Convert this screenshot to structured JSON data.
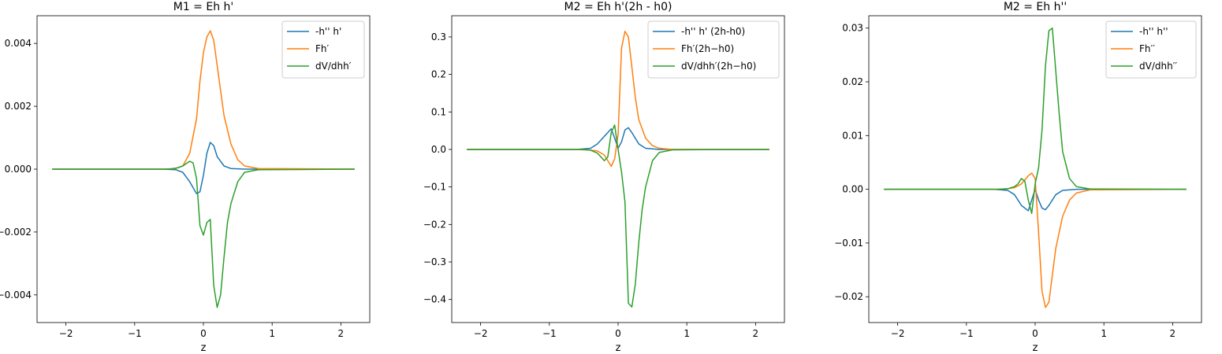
{
  "chart_data": [
    {
      "type": "line",
      "title": "M1 = Eh h'",
      "xlabel": "z",
      "ylabel": "",
      "xlim": [
        -2.42,
        2.42
      ],
      "ylim": [
        -0.00488,
        0.00488
      ],
      "xticks": [
        -2,
        -1,
        0,
        1,
        2
      ],
      "xtick_labels": [
        "−2",
        "−1",
        "0",
        "1",
        "2"
      ],
      "yticks": [
        -0.004,
        -0.002,
        0.0,
        0.002,
        0.004
      ],
      "ytick_labels": [
        "−0.004",
        "−0.002",
        "0.000",
        "0.002",
        "0.004"
      ],
      "legend_position": "top-right",
      "series": [
        {
          "name": "-h'' h'",
          "color": "#1f77b4",
          "x": [
            -2.2,
            -0.6,
            -0.4,
            -0.3,
            -0.2,
            -0.1,
            -0.05,
            0.0,
            0.05,
            0.1,
            0.15,
            0.2,
            0.3,
            0.4,
            0.6,
            2.2
          ],
          "y": [
            0,
            0,
            -2e-05,
            -0.0001,
            -0.0004,
            -0.00078,
            -0.00072,
            -0.0002,
            0.0005,
            0.00085,
            0.00075,
            0.0004,
            0.0001,
            2e-05,
            0,
            0
          ]
        },
        {
          "name": "Fh′",
          "color": "#ff7f0e",
          "x": [
            -2.2,
            -0.6,
            -0.4,
            -0.3,
            -0.2,
            -0.1,
            -0.05,
            0.0,
            0.05,
            0.1,
            0.15,
            0.2,
            0.25,
            0.3,
            0.4,
            0.5,
            0.6,
            0.8,
            2.2
          ],
          "y": [
            0,
            0,
            2e-05,
            0.0001,
            0.0005,
            0.0016,
            0.0028,
            0.0037,
            0.0042,
            0.0044,
            0.0041,
            0.0033,
            0.0025,
            0.0017,
            0.0008,
            0.0003,
            0.0001,
            2e-05,
            0
          ]
        },
        {
          "name": "dV/dhh′",
          "color": "#2ca02c",
          "x": [
            -2.2,
            -0.5,
            -0.4,
            -0.3,
            -0.2,
            -0.15,
            -0.1,
            -0.05,
            0.0,
            0.05,
            0.1,
            0.15,
            0.2,
            0.25,
            0.3,
            0.35,
            0.4,
            0.5,
            0.6,
            0.8,
            2.2
          ],
          "y": [
            0,
            0,
            3e-05,
            0.0001,
            0.00025,
            0.0002,
            -0.0003,
            -0.0018,
            -0.0021,
            -0.0017,
            -0.0016,
            -0.0037,
            -0.0044,
            -0.004,
            -0.0028,
            -0.0017,
            -0.0011,
            -0.0004,
            -0.0001,
            -2e-05,
            0
          ]
        }
      ]
    },
    {
      "type": "line",
      "title": "M2 = Eh h'(2h - h0)",
      "xlabel": "z",
      "ylabel": "",
      "xlim": [
        -2.42,
        2.42
      ],
      "ylim": [
        -0.4615,
        0.3565
      ],
      "xticks": [
        -2,
        -1,
        0,
        1,
        2
      ],
      "xtick_labels": [
        "−2",
        "−1",
        "0",
        "1",
        "2"
      ],
      "yticks": [
        -0.4,
        -0.3,
        -0.2,
        -0.1,
        0.0,
        0.1,
        0.2,
        0.3
      ],
      "ytick_labels": [
        "−0.4",
        "−0.3",
        "−0.2",
        "−0.1",
        "0.0",
        "0.1",
        "0.2",
        "0.3"
      ],
      "legend_position": "top-right",
      "series": [
        {
          "name": "-h'' h' (2h-h0)",
          "color": "#1f77b4",
          "x": [
            -2.2,
            -0.6,
            -0.4,
            -0.3,
            -0.2,
            -0.1,
            -0.05,
            0.0,
            0.05,
            0.1,
            0.15,
            0.2,
            0.3,
            0.4,
            0.6,
            2.2
          ],
          "y": [
            0,
            0,
            0.003,
            0.015,
            0.035,
            0.055,
            0.03,
            0.003,
            0.02,
            0.052,
            0.058,
            0.045,
            0.015,
            0.003,
            0,
            0
          ]
        },
        {
          "name": "Fh′(2h−h0)",
          "color": "#ff7f0e",
          "x": [
            -2.2,
            -0.6,
            -0.4,
            -0.3,
            -0.2,
            -0.15,
            -0.1,
            -0.05,
            0.0,
            0.05,
            0.1,
            0.15,
            0.2,
            0.25,
            0.3,
            0.4,
            0.5,
            0.6,
            0.8,
            2.2
          ],
          "y": [
            0,
            0,
            -0.002,
            -0.004,
            -0.015,
            -0.03,
            -0.045,
            -0.025,
            0.04,
            0.27,
            0.315,
            0.3,
            0.22,
            0.14,
            0.08,
            0.03,
            0.01,
            0.003,
            0,
            0
          ]
        },
        {
          "name": "dV/dhh′(2h−h0)",
          "color": "#2ca02c",
          "x": [
            -2.2,
            -0.5,
            -0.4,
            -0.3,
            -0.2,
            -0.15,
            -0.1,
            -0.05,
            0.0,
            0.05,
            0.1,
            0.15,
            0.2,
            0.25,
            0.3,
            0.35,
            0.4,
            0.5,
            0.6,
            0.8,
            2.2
          ],
          "y": [
            0,
            0,
            -0.002,
            -0.01,
            -0.03,
            -0.02,
            0.045,
            0.065,
            0.0,
            -0.06,
            -0.14,
            -0.41,
            -0.42,
            -0.36,
            -0.25,
            -0.16,
            -0.1,
            -0.03,
            -0.008,
            -0.001,
            0
          ]
        }
      ]
    },
    {
      "type": "line",
      "title": "M2 = Eh h''",
      "xlabel": "z",
      "ylabel": "",
      "xlim": [
        -2.42,
        2.42
      ],
      "ylim": [
        -0.0248,
        0.0323
      ],
      "xticks": [
        -2,
        -1,
        0,
        1,
        2
      ],
      "xtick_labels": [
        "−2",
        "−1",
        "0",
        "1",
        "2"
      ],
      "yticks": [
        -0.02,
        -0.01,
        0.0,
        0.01,
        0.02,
        0.03
      ],
      "ytick_labels": [
        "−0.02",
        "−0.01",
        "0.00",
        "0.01",
        "0.02",
        "0.03"
      ],
      "legend_position": "top-right",
      "series": [
        {
          "name": "-h'' h''",
          "color": "#1f77b4",
          "x": [
            -2.2,
            -0.6,
            -0.4,
            -0.3,
            -0.2,
            -0.1,
            -0.05,
            0.0,
            0.05,
            0.1,
            0.15,
            0.2,
            0.3,
            0.4,
            0.6,
            2.2
          ],
          "y": [
            0,
            0,
            -0.0002,
            -0.001,
            -0.003,
            -0.004,
            -0.002,
            0.0,
            -0.002,
            -0.0035,
            -0.0038,
            -0.003,
            -0.001,
            -0.0002,
            0,
            0
          ]
        },
        {
          "name": "Fh′′",
          "color": "#ff7f0e",
          "x": [
            -2.2,
            -0.6,
            -0.4,
            -0.3,
            -0.2,
            -0.1,
            -0.05,
            0.0,
            0.05,
            0.1,
            0.15,
            0.2,
            0.25,
            0.3,
            0.4,
            0.5,
            0.6,
            0.8,
            2.2
          ],
          "y": [
            0,
            0,
            0.0001,
            0.0003,
            0.001,
            0.0025,
            0.003,
            0.002,
            -0.008,
            -0.019,
            -0.022,
            -0.021,
            -0.016,
            -0.011,
            -0.005,
            -0.002,
            -0.0007,
            -0.0001,
            0
          ]
        },
        {
          "name": "dV/dhh′′",
          "color": "#2ca02c",
          "x": [
            -2.2,
            -0.5,
            -0.4,
            -0.3,
            -0.25,
            -0.2,
            -0.15,
            -0.1,
            -0.05,
            0.0,
            0.05,
            0.1,
            0.15,
            0.2,
            0.25,
            0.3,
            0.35,
            0.4,
            0.5,
            0.6,
            0.8,
            2.2
          ],
          "y": [
            0,
            0,
            0.0001,
            0.0005,
            0.001,
            0.002,
            0.0015,
            -0.002,
            -0.0045,
            0.001,
            0.004,
            0.011,
            0.023,
            0.0295,
            0.03,
            0.022,
            0.014,
            0.007,
            0.002,
            0.0005,
            5e-05,
            0
          ]
        }
      ]
    }
  ]
}
